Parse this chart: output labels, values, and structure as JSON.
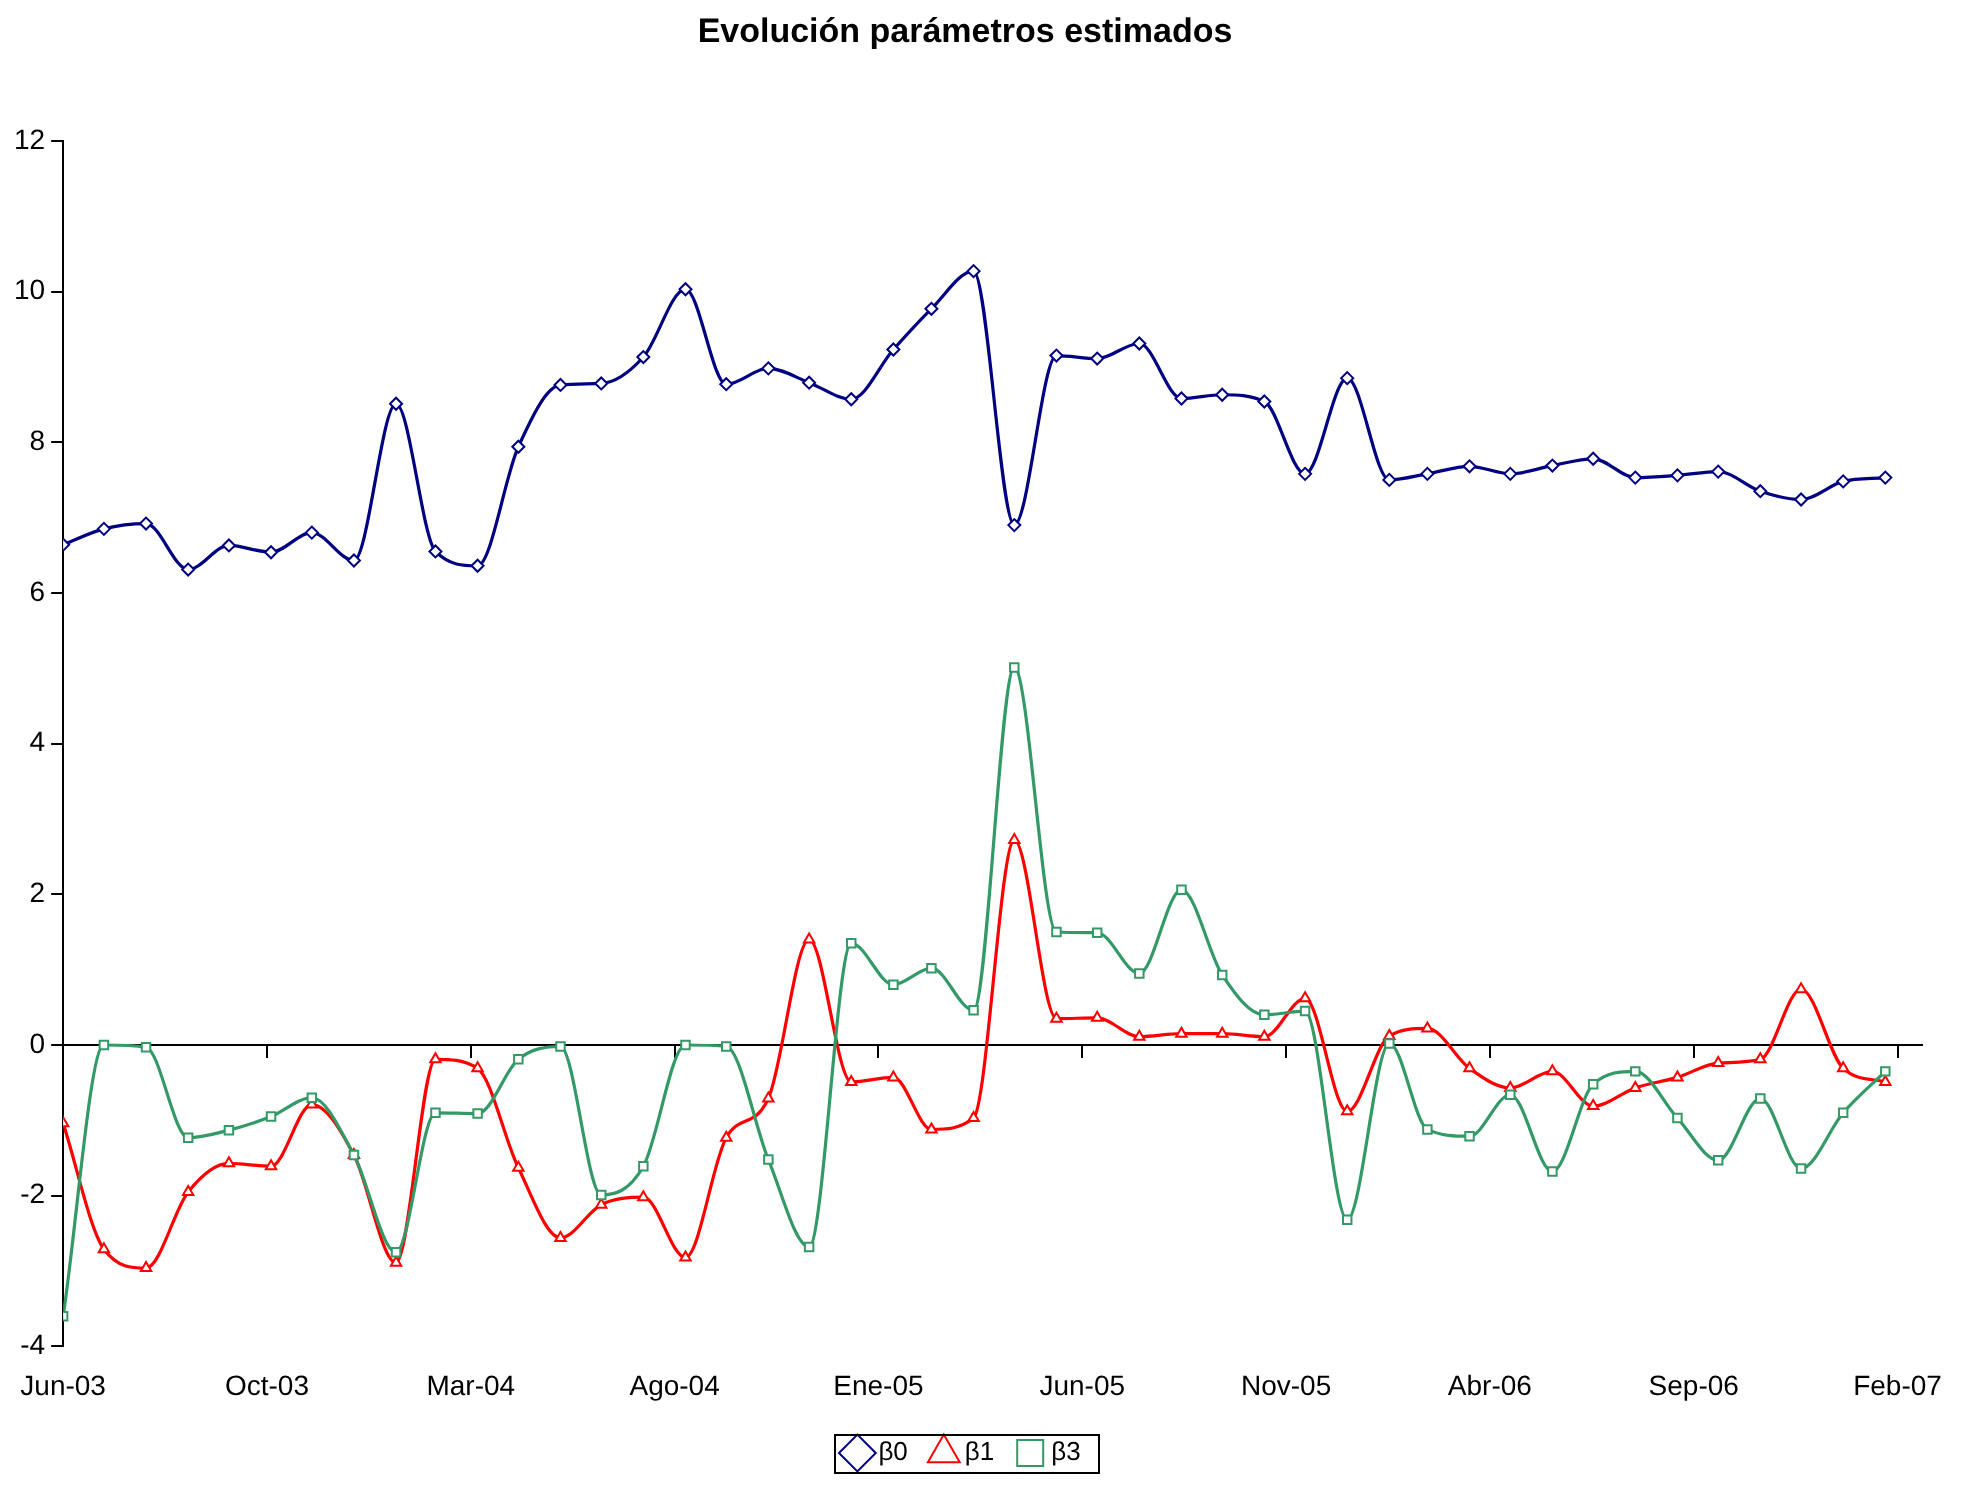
{
  "chart_data": {
    "type": "line",
    "title": "Evolución parámetros estimados",
    "x": [
      "2003-06-01",
      "2003-07-01",
      "2003-08-01",
      "2003-09-01",
      "2003-10-01",
      "2003-11-01",
      "2003-12-01",
      "2004-01-01",
      "2004-02-01",
      "2004-03-01",
      "2004-04-01",
      "2004-05-01",
      "2004-06-01",
      "2004-07-01",
      "2004-08-01",
      "2004-09-01",
      "2004-10-01",
      "2004-11-01",
      "2004-12-01",
      "2005-01-01",
      "2005-02-01",
      "2005-03-01",
      "2005-04-01",
      "2005-05-01",
      "2005-06-01",
      "2005-07-01",
      "2005-08-01",
      "2005-09-01",
      "2005-10-01",
      "2005-11-01",
      "2005-12-01",
      "2006-01-01",
      "2006-02-01",
      "2006-03-01",
      "2006-04-01",
      "2006-05-01",
      "2006-06-01",
      "2006-07-01",
      "2006-08-01",
      "2006-09-01",
      "2006-10-01",
      "2006-11-01",
      "2006-12-01",
      "2007-01-01",
      "2007-02-01"
    ],
    "series": [
      {
        "name": "β0",
        "color": "#000080",
        "marker": "diamond",
        "values": [
          6.64,
          6.85,
          6.92,
          6.31,
          6.63,
          6.54,
          6.8,
          6.43,
          8.51,
          6.55,
          6.36,
          7.94,
          8.76,
          8.78,
          9.13,
          10.03,
          8.77,
          8.98,
          8.79,
          8.57,
          9.23,
          9.77,
          10.27,
          6.9,
          9.15,
          9.11,
          9.31,
          8.58,
          8.63,
          8.54,
          7.58,
          8.85,
          7.5,
          7.58,
          7.68,
          7.58,
          7.69,
          7.78,
          7.53,
          7.56,
          7.61,
          7.35,
          7.24,
          7.48,
          7.53
        ]
      },
      {
        "name": "β1",
        "color": "#ff0000",
        "marker": "triangle",
        "values": [
          -1.04,
          -2.71,
          -2.96,
          -1.95,
          -1.57,
          -1.61,
          -0.79,
          -1.46,
          -2.89,
          -0.19,
          -0.31,
          -1.63,
          -2.56,
          -2.12,
          -2.02,
          -2.82,
          -1.23,
          -0.71,
          1.4,
          -0.49,
          -0.43,
          -1.12,
          -0.97,
          2.72,
          0.35,
          0.36,
          0.11,
          0.15,
          0.15,
          0.11,
          0.62,
          -0.88,
          0.12,
          0.22,
          -0.31,
          -0.57,
          -0.35,
          -0.81,
          -0.57,
          -0.43,
          -0.24,
          -0.19,
          0.74,
          -0.31,
          -0.49
        ]
      },
      {
        "name": "β3",
        "color": "#339966",
        "marker": "square",
        "values": [
          -3.6,
          0,
          -0.03,
          -1.23,
          -1.13,
          -0.95,
          -0.7,
          -1.46,
          -2.75,
          -0.9,
          -0.91,
          -0.19,
          -0.02,
          -1.99,
          -1.61,
          0,
          -0.02,
          -1.52,
          -2.68,
          1.35,
          0.8,
          1.02,
          0.46,
          5.01,
          1.5,
          1.49,
          0.95,
          2.06,
          0.93,
          0.4,
          0.45,
          -2.32,
          0.02,
          -1.12,
          -1.21,
          -0.66,
          -1.68,
          -0.52,
          -0.35,
          -0.97,
          -1.53,
          -0.71,
          -1.64,
          -0.9,
          -0.35
        ]
      }
    ],
    "xlim": [
      "2003-06-01",
      "2007-02-28"
    ],
    "xticks": [
      {
        "value": "2003-06-01",
        "label": "Jun-03"
      },
      {
        "value": "2003-10-29",
        "label": "Oct-03"
      },
      {
        "value": "2004-03-27",
        "label": "Mar-04"
      },
      {
        "value": "2004-08-24",
        "label": "Ago-04"
      },
      {
        "value": "2005-01-21",
        "label": "Ene-05"
      },
      {
        "value": "2005-06-20",
        "label": "Jun-05"
      },
      {
        "value": "2005-11-17",
        "label": "Nov-05"
      },
      {
        "value": "2006-04-16",
        "label": "Abr-06"
      },
      {
        "value": "2006-09-13",
        "label": "Sep-06"
      },
      {
        "value": "2007-02-10",
        "label": "Feb-07"
      }
    ],
    "ylim": [
      -4,
      12
    ],
    "yticks": [
      -4,
      -2,
      0,
      2,
      4,
      6,
      8,
      10,
      12
    ],
    "legend": "bottom"
  }
}
